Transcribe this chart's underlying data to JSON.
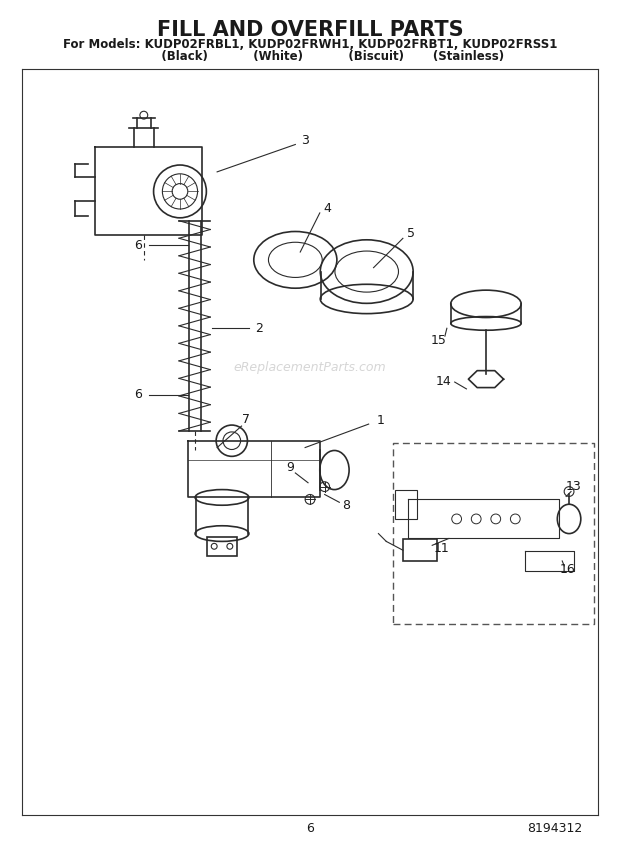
{
  "title": "FILL AND OVERFILL PARTS",
  "subtitle1": "For Models: KUDP02FRBL1, KUDP02FRWH1, KUDP02FRBT1, KUDP02FRSS1",
  "subtitle2": "           (Black)           (White)           (Biscuit)       (Stainless)",
  "page_number": "6",
  "part_number": "8194312",
  "watermark": "eReplacementParts.com",
  "bg_color": "#ffffff",
  "line_color": "#2b2b2b",
  "label_color": "#1a1a1a",
  "title_fontsize": 15,
  "subtitle_fontsize": 8.5,
  "label_fontsize": 9
}
